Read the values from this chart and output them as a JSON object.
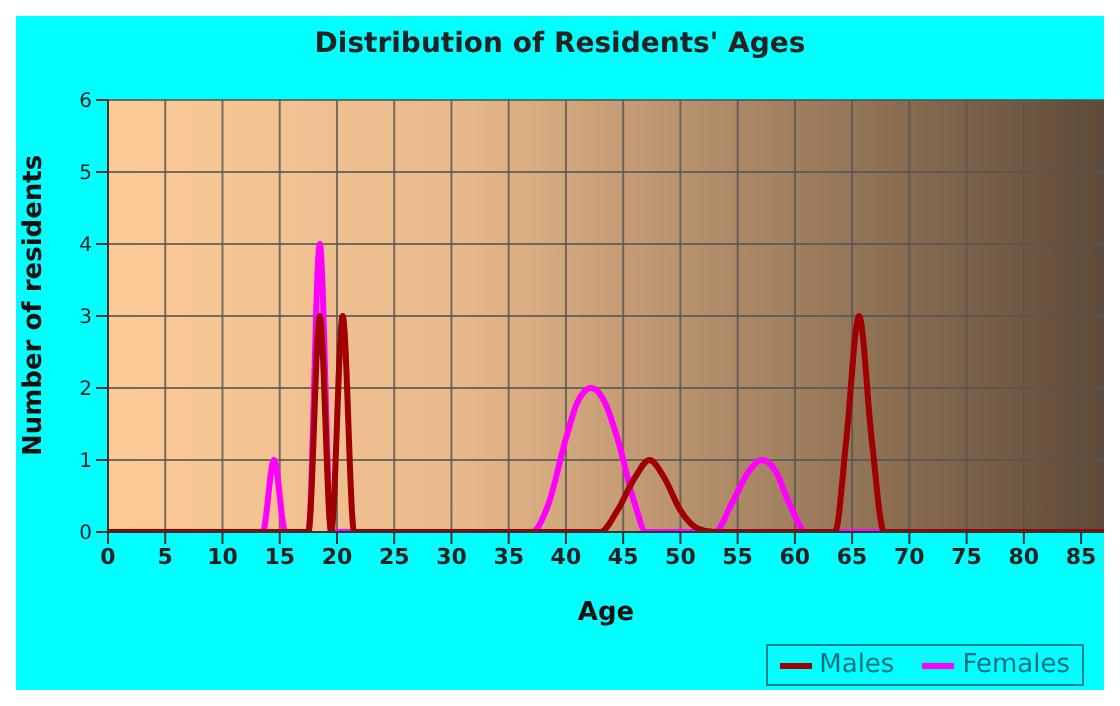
{
  "chart_data": {
    "type": "line",
    "title": "Distribution of Residents' Ages",
    "xlabel": "Age",
    "ylabel": "Number of residents",
    "xlim": [
      0,
      87
    ],
    "xticks": [
      0,
      5,
      10,
      15,
      20,
      25,
      30,
      35,
      40,
      45,
      50,
      55,
      60,
      65,
      70,
      75,
      80,
      85
    ],
    "ylim": [
      0,
      6
    ],
    "yticks": [
      0,
      1,
      2,
      3,
      4,
      5,
      6
    ],
    "grid": true,
    "legend": "bottom right",
    "marker": "none",
    "series": [
      {
        "name": "Males",
        "color": "#a00000",
        "x": [
          0,
          17.5,
          18.5,
          19.5,
          20.5,
          21.5,
          40,
          43,
          44.5,
          46,
          47.3,
          48.6,
          50,
          51.5,
          53,
          63.5,
          64.5,
          65.6,
          66.7,
          67.8,
          87
        ],
        "values": [
          0,
          0,
          3,
          0,
          3,
          0,
          0,
          0,
          0.3,
          0.75,
          1,
          0.75,
          0.3,
          0.05,
          0,
          0,
          1.3,
          3,
          1.3,
          0,
          0
        ]
      },
      {
        "name": "Females",
        "color": "#ff00ff",
        "x": [
          0,
          13.5,
          14.5,
          15.5,
          17.5,
          18.5,
          19.5,
          37,
          38.5,
          40,
          41,
          42.2,
          43.4,
          44.5,
          46,
          47,
          53,
          54.5,
          56,
          57.1,
          58.3,
          59.5,
          61,
          87
        ],
        "values": [
          0,
          0,
          1,
          0,
          0,
          4,
          0,
          0,
          0.4,
          1.3,
          1.8,
          2,
          1.8,
          1.3,
          0.4,
          0,
          0,
          0.4,
          0.85,
          1,
          0.85,
          0.4,
          0,
          0
        ]
      }
    ]
  }
}
